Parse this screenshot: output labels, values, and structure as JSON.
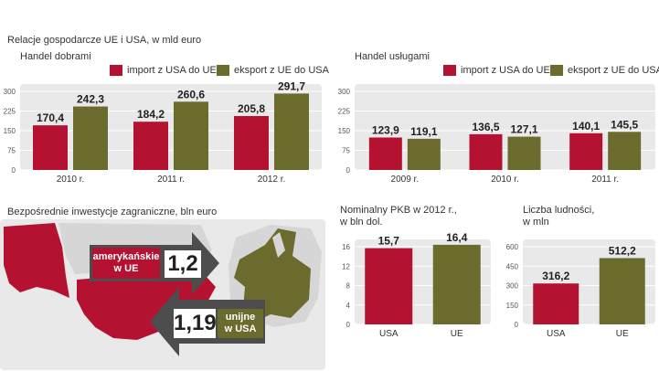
{
  "header": {
    "title": "Relacje gospodarcze UE i USA, w mld euro"
  },
  "colors": {
    "import": "#b51231",
    "export": "#6b6b2e",
    "panel_bg": "#e9e9e9",
    "arrow": "#4d4d4d"
  },
  "legend": {
    "import_label": "import z USA do UE",
    "export_label": "eksport z UE do USA"
  },
  "chart_data": [
    {
      "type": "bar",
      "title": "Handel dobrami",
      "categories": [
        "2010 r.",
        "2011 r.",
        "2012 r."
      ],
      "series": [
        {
          "name": "import z USA do UE",
          "values": [
            170.4,
            184.2,
            205.8
          ],
          "labels": [
            "170,4",
            "184,2",
            "205,8"
          ]
        },
        {
          "name": "eksport z UE do USA",
          "values": [
            242.3,
            260.6,
            291.7
          ],
          "labels": [
            "242,3",
            "260,6",
            "291,7"
          ]
        }
      ],
      "yticks": [
        "0",
        "75",
        "150",
        "225",
        "300"
      ],
      "ylim": [
        0,
        300
      ]
    },
    {
      "type": "bar",
      "title": "Handel usługami",
      "categories": [
        "2009 r.",
        "2010 r.",
        "2011 r."
      ],
      "series": [
        {
          "name": "import z USA do UE",
          "values": [
            123.9,
            136.5,
            140.1
          ],
          "labels": [
            "123,9",
            "136,5",
            "140,1"
          ]
        },
        {
          "name": "eksport z UE do USA",
          "values": [
            119.1,
            127.1,
            145.5
          ],
          "labels": [
            "119,1",
            "127,1",
            "145,5"
          ]
        }
      ],
      "yticks": [
        "0",
        "75",
        "150",
        "225",
        "300"
      ],
      "ylim": [
        0,
        300
      ]
    },
    {
      "type": "bar",
      "title": "Nominalny PKB w 2012 r.,",
      "subtitle": "w bln dol.",
      "categories": [
        "USA",
        "UE"
      ],
      "values": [
        15.7,
        16.4
      ],
      "labels": [
        "15,7",
        "16,4"
      ],
      "yticks": [
        "0",
        "4",
        "8",
        "12",
        "16"
      ],
      "ylim": [
        0,
        16
      ]
    },
    {
      "type": "bar",
      "title": "Liczba ludności,",
      "subtitle": "w mln",
      "categories": [
        "USA",
        "UE"
      ],
      "values": [
        316.2,
        512.2
      ],
      "labels": [
        "316,2",
        "512,2"
      ],
      "yticks": [
        "0",
        "150",
        "300",
        "450",
        "600"
      ],
      "ylim": [
        0,
        600
      ]
    }
  ],
  "fdi": {
    "title": "Bezpośrednie inwestycje zagraniczne, bln euro",
    "us_in_eu": {
      "label_line1": "amerykańskie",
      "label_line2": "w UE",
      "value": "1,2"
    },
    "eu_in_us": {
      "label_line1": "unijne",
      "label_line2": "w USA",
      "value": "1,19"
    }
  }
}
